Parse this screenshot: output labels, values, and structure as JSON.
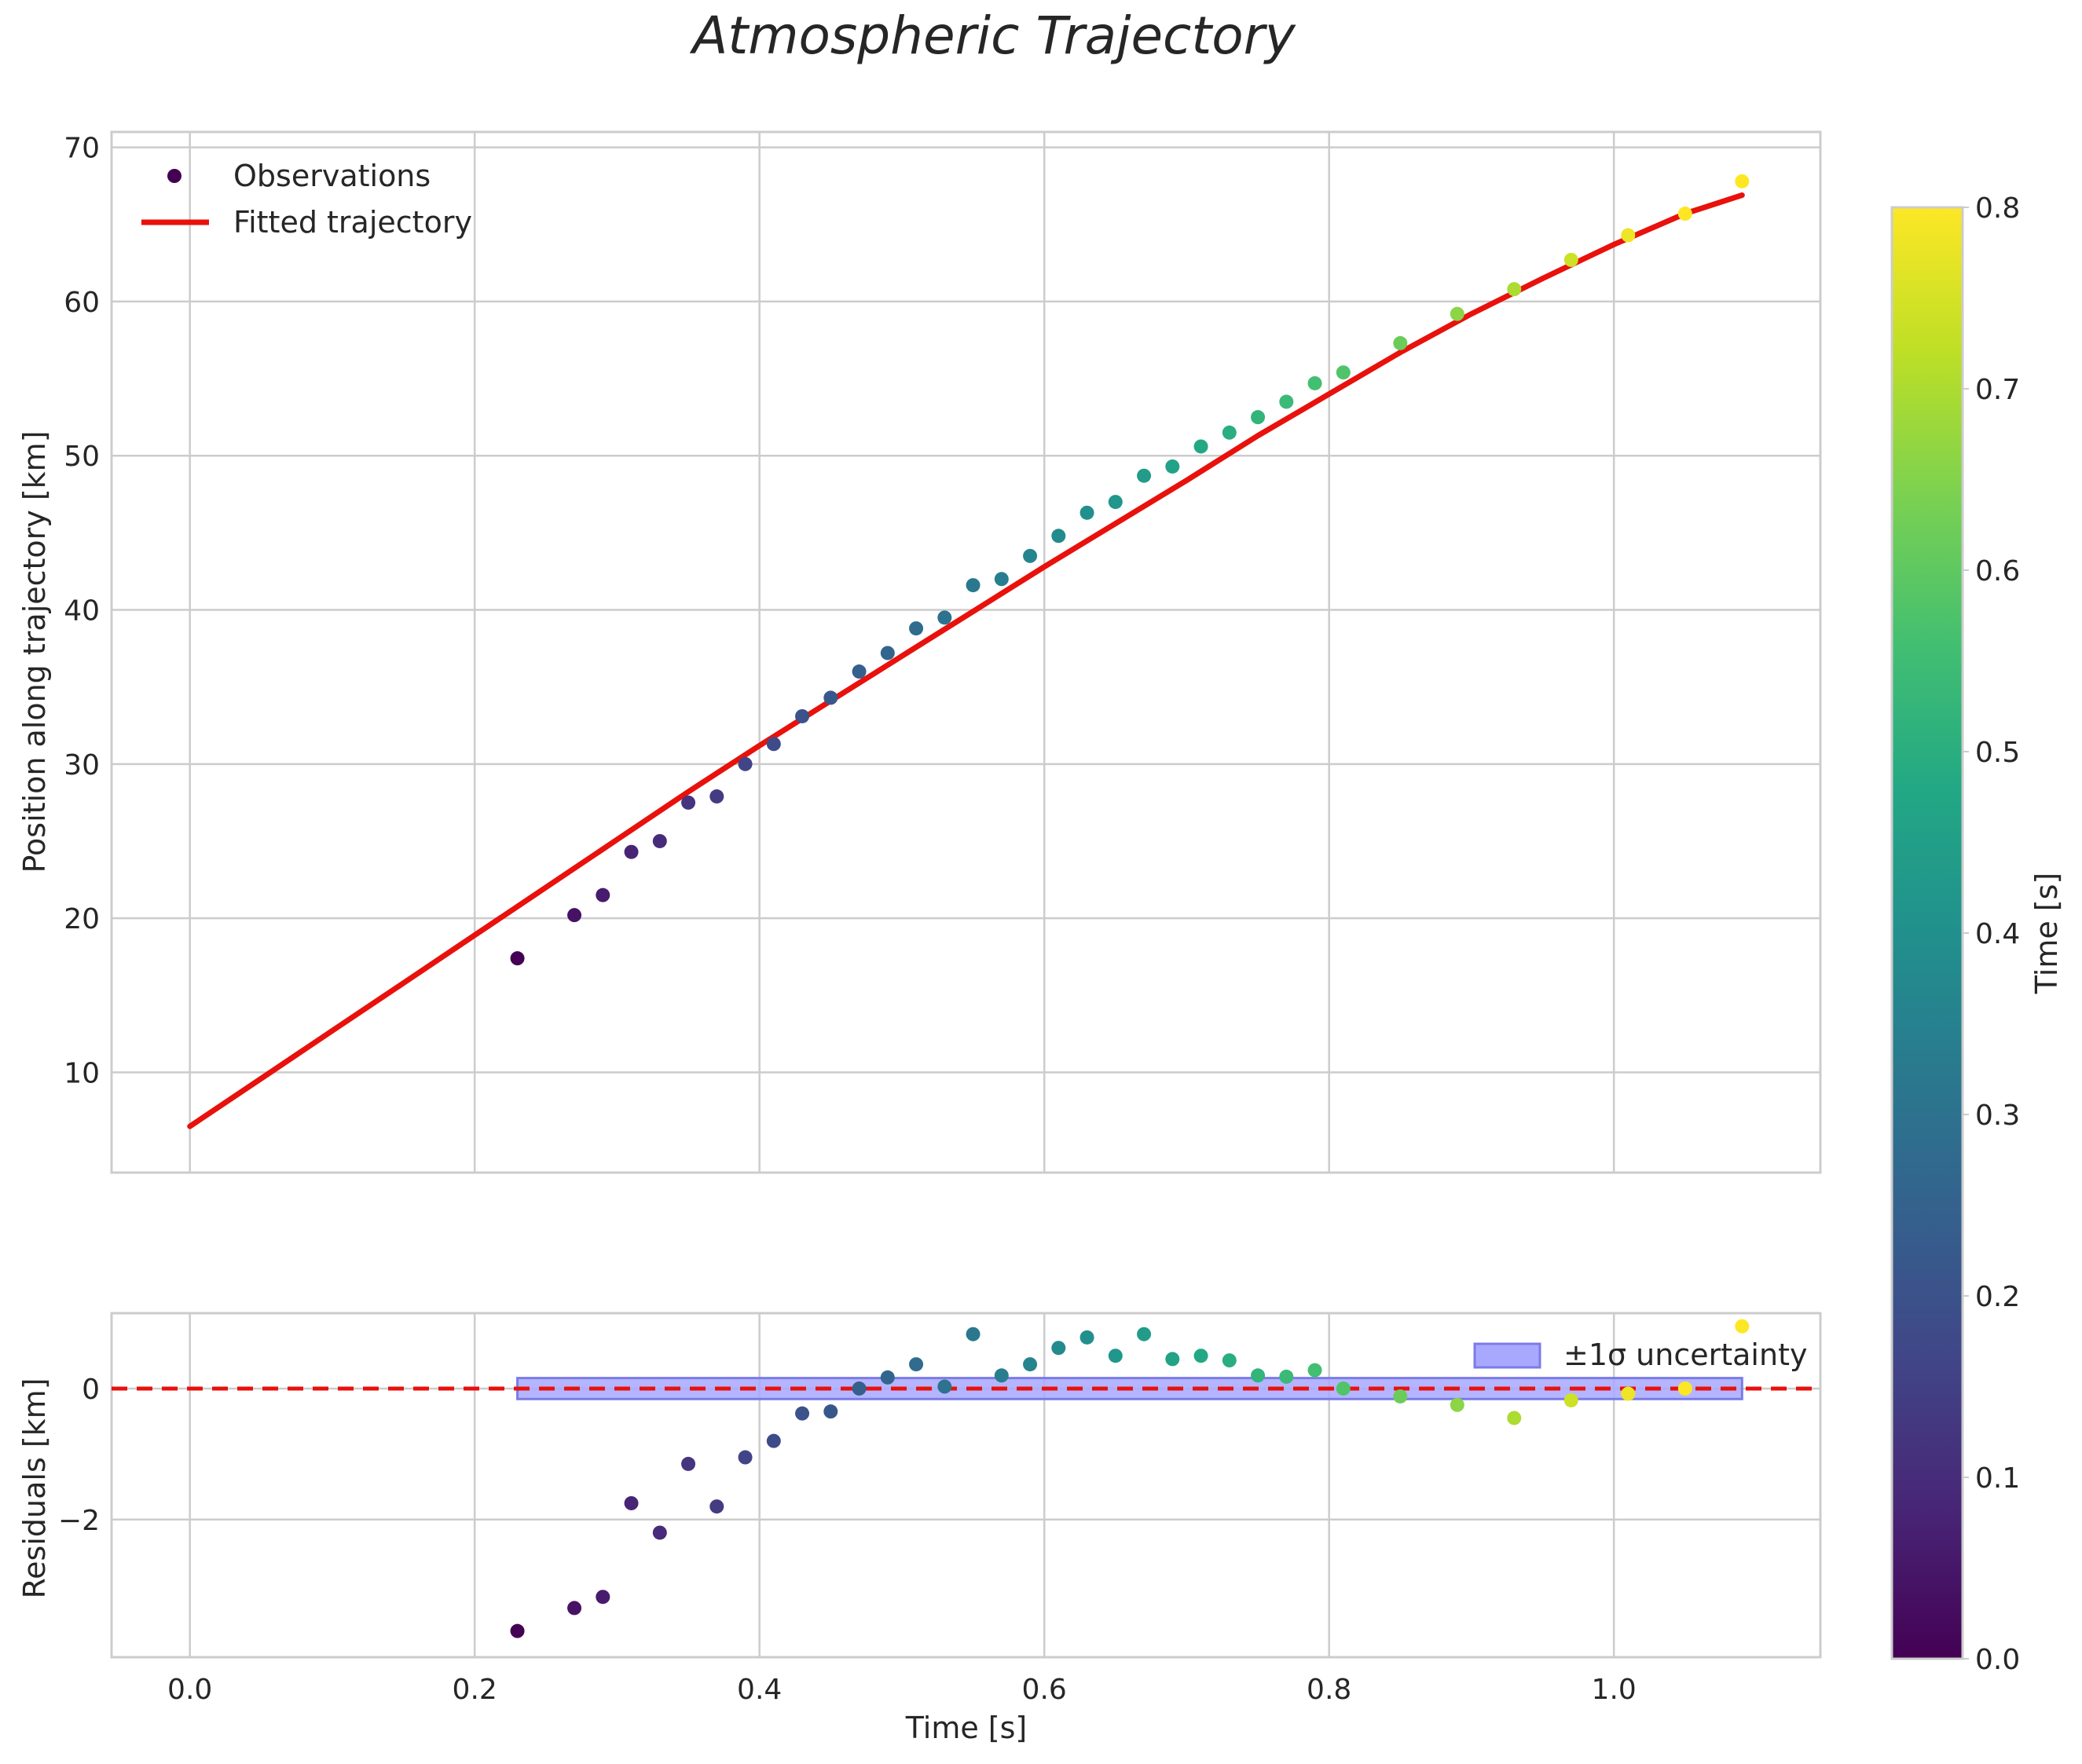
{
  "chart_data": {
    "type": "scatter",
    "title": "Atmospheric Trajectory",
    "panels": [
      {
        "name": "trajectory",
        "xlabel": "Time [s]",
        "ylabel": "Position along trajectory [km]",
        "xlim": [
          -0.055,
          1.145
        ],
        "ylim": [
          3.5,
          71
        ],
        "xticks": [
          0.0,
          0.2,
          0.4,
          0.6,
          0.8,
          1.0
        ],
        "xtick_labels": [
          "0.0",
          "0.2",
          "0.4",
          "0.6",
          "0.8",
          "1.0"
        ],
        "yticks": [
          10,
          20,
          30,
          40,
          50,
          60,
          70
        ],
        "ytick_labels": [
          "10",
          "20",
          "30",
          "40",
          "50",
          "60",
          "70"
        ],
        "legend": [
          "Observations",
          "Fitted trajectory"
        ],
        "legend_position": "upper-left",
        "observations": {
          "x": [
            0.23,
            0.27,
            0.29,
            0.31,
            0.33,
            0.35,
            0.37,
            0.39,
            0.41,
            0.43,
            0.45,
            0.47,
            0.49,
            0.51,
            0.53,
            0.55,
            0.57,
            0.59,
            0.61,
            0.63,
            0.65,
            0.67,
            0.69,
            0.71,
            0.73,
            0.75,
            0.77,
            0.79,
            0.81,
            0.85,
            0.89,
            0.93,
            0.97,
            1.01,
            1.05,
            1.09
          ],
          "y": [
            17.4,
            20.2,
            21.5,
            24.3,
            25.0,
            27.5,
            27.9,
            30.0,
            31.3,
            33.1,
            34.3,
            36.0,
            37.2,
            38.8,
            39.5,
            41.6,
            42.0,
            43.5,
            44.8,
            46.3,
            47.0,
            48.7,
            49.3,
            50.6,
            51.5,
            52.5,
            53.5,
            54.7,
            55.4,
            57.3,
            59.2,
            60.8,
            62.7,
            64.3,
            65.7,
            67.8
          ],
          "color_value": [
            0.0,
            0.04,
            0.06,
            0.08,
            0.1,
            0.12,
            0.14,
            0.16,
            0.18,
            0.2,
            0.22,
            0.24,
            0.26,
            0.28,
            0.3,
            0.32,
            0.34,
            0.36,
            0.38,
            0.4,
            0.42,
            0.44,
            0.46,
            0.48,
            0.5,
            0.52,
            0.54,
            0.56,
            0.58,
            0.62,
            0.66,
            0.7,
            0.74,
            0.78,
            0.8,
            0.8
          ]
        },
        "fitted_trajectory": {
          "color": "#e8110c",
          "x": [
            0.0,
            0.05,
            0.1,
            0.15,
            0.2,
            0.25,
            0.3,
            0.35,
            0.4,
            0.45,
            0.5,
            0.55,
            0.6,
            0.65,
            0.7,
            0.75,
            0.8,
            0.85,
            0.9,
            0.95,
            1.0,
            1.05,
            1.09
          ],
          "y": [
            6.5,
            9.6,
            12.7,
            15.8,
            18.9,
            22.0,
            25.1,
            28.2,
            31.2,
            34.1,
            37.0,
            39.9,
            42.8,
            45.6,
            48.4,
            51.3,
            54.0,
            56.7,
            59.2,
            61.5,
            63.7,
            65.7,
            66.9
          ]
        }
      },
      {
        "name": "residuals",
        "xlabel": "Time [s]",
        "ylabel": "Residuals [km]",
        "xlim": [
          -0.055,
          1.145
        ],
        "ylim": [
          -4.1,
          1.15
        ],
        "xticks": [
          0.0,
          0.2,
          0.4,
          0.6,
          0.8,
          1.0
        ],
        "xtick_labels": [
          "0.0",
          "0.2",
          "0.4",
          "0.6",
          "0.8",
          "1.0"
        ],
        "yticks": [
          0,
          -2
        ],
        "ytick_labels": [
          "0",
          "−2"
        ],
        "legend": [
          "±1σ uncertainty"
        ],
        "legend_position": "upper-right",
        "residuals": {
          "x": [
            0.23,
            0.27,
            0.29,
            0.31,
            0.33,
            0.35,
            0.37,
            0.39,
            0.41,
            0.43,
            0.45,
            0.47,
            0.49,
            0.51,
            0.53,
            0.55,
            0.57,
            0.59,
            0.61,
            0.63,
            0.65,
            0.67,
            0.69,
            0.71,
            0.73,
            0.75,
            0.77,
            0.79,
            0.81,
            0.85,
            0.89,
            0.93,
            0.97,
            1.01,
            1.05,
            1.09
          ],
          "y": [
            -3.7,
            -3.35,
            -3.18,
            -1.75,
            -2.2,
            -1.15,
            -1.8,
            -1.05,
            -0.8,
            -0.38,
            -0.35,
            0.0,
            0.17,
            0.37,
            0.03,
            0.83,
            0.2,
            0.37,
            0.62,
            0.78,
            0.5,
            0.83,
            0.45,
            0.5,
            0.43,
            0.2,
            0.18,
            0.28,
            0.0,
            -0.12,
            -0.25,
            -0.45,
            -0.18,
            -0.08,
            0.0,
            0.95
          ],
          "color_value": [
            0.0,
            0.04,
            0.06,
            0.08,
            0.1,
            0.12,
            0.14,
            0.16,
            0.18,
            0.2,
            0.22,
            0.24,
            0.26,
            0.28,
            0.3,
            0.32,
            0.34,
            0.36,
            0.38,
            0.4,
            0.42,
            0.44,
            0.46,
            0.48,
            0.5,
            0.52,
            0.54,
            0.56,
            0.58,
            0.62,
            0.66,
            0.7,
            0.74,
            0.78,
            0.8,
            0.8
          ]
        },
        "zero_line": {
          "y": 0,
          "color": "#e8110c"
        },
        "uncertainty_band": {
          "x": [
            0.23,
            1.09
          ],
          "y": [
            -0.16,
            0.16
          ],
          "color": "#a8a8ff"
        }
      }
    ],
    "colorbar": {
      "label": "Time [s]",
      "colormap": "viridis",
      "range": [
        0.0,
        0.8
      ],
      "ticks": [
        0.0,
        0.1,
        0.2,
        0.3,
        0.4,
        0.5,
        0.6,
        0.7,
        0.8
      ],
      "tick_labels": [
        "0.0",
        "0.1",
        "0.2",
        "0.3",
        "0.4",
        "0.5",
        "0.6",
        "0.7",
        "0.8"
      ]
    }
  }
}
